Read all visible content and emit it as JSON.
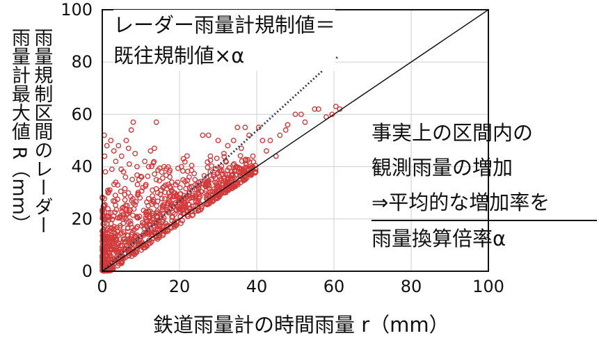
{
  "chart_data": {
    "type": "scatter",
    "xlabel": "鉄道雨量計の時間雨量 r（mm）",
    "ylabel_lines": [
      "雨量規制区間のレーダー",
      "雨量計最大値 R（mm）"
    ],
    "xlim": [
      0,
      100
    ],
    "ylim": [
      0,
      100
    ],
    "xticks": [
      0,
      20,
      40,
      60,
      80,
      100
    ],
    "yticks": [
      0,
      20,
      40,
      60,
      80,
      100
    ],
    "grid": true,
    "series": [
      {
        "marker": "open-circle",
        "color": "#d23a3a",
        "points": [
          [
            0.5,
            52
          ],
          [
            0.6,
            44
          ],
          [
            1.2,
            48
          ],
          [
            0.8,
            38
          ],
          [
            1.5,
            30
          ],
          [
            2.2,
            50
          ],
          [
            3.0,
            46
          ],
          [
            3.5,
            42
          ],
          [
            4.2,
            48
          ],
          [
            5.0,
            44
          ],
          [
            5.5,
            38
          ],
          [
            6.2,
            50
          ],
          [
            6.8,
            47
          ],
          [
            7.5,
            54
          ],
          [
            8.0,
            57
          ],
          [
            8.5,
            45
          ],
          [
            9.0,
            40
          ],
          [
            10.2,
            36
          ],
          [
            11.0,
            42
          ],
          [
            12.0,
            40
          ],
          [
            12.5,
            46
          ],
          [
            13.5,
            47
          ],
          [
            14.0,
            35
          ],
          [
            15.2,
            31
          ],
          [
            16.0,
            40
          ],
          [
            17.5,
            36
          ],
          [
            18.5,
            30
          ],
          [
            19.5,
            34
          ],
          [
            20.5,
            40
          ],
          [
            21.0,
            43
          ],
          [
            22.5,
            36
          ],
          [
            24.0,
            35
          ],
          [
            25.0,
            32
          ],
          [
            26.0,
            52
          ],
          [
            27.5,
            52
          ],
          [
            28.0,
            44
          ],
          [
            29.0,
            37
          ],
          [
            30.0,
            50
          ],
          [
            31.5,
            45
          ],
          [
            32.5,
            48
          ],
          [
            34.0,
            50
          ],
          [
            35.0,
            55
          ],
          [
            36.0,
            47
          ],
          [
            37.0,
            55
          ],
          [
            38.0,
            52
          ],
          [
            39.0,
            44
          ],
          [
            40.5,
            55
          ],
          [
            41.5,
            50
          ],
          [
            42.5,
            46
          ],
          [
            43.5,
            50
          ],
          [
            45.0,
            44
          ],
          [
            46.0,
            52
          ],
          [
            47.5,
            54
          ],
          [
            48.0,
            56
          ],
          [
            50.0,
            60
          ],
          [
            51.5,
            60
          ],
          [
            52.5,
            57
          ],
          [
            55.0,
            62
          ],
          [
            56.0,
            62
          ],
          [
            58.0,
            59
          ],
          [
            59.5,
            60
          ],
          [
            60.5,
            63
          ],
          [
            61.5,
            62
          ],
          [
            14.0,
            57
          ],
          [
            9.5,
            35
          ],
          [
            4.0,
            33
          ],
          [
            7.0,
            41
          ],
          [
            2.5,
            39
          ],
          [
            6.0,
            36
          ],
          [
            10.5,
            32
          ],
          [
            13.0,
            31
          ],
          [
            3.5,
            34
          ]
        ]
      },
      {
        "name": "",
        "marker": "dotted-line",
        "color": "#2c3e5c",
        "slope_label": "α",
        "points": [
          [
            0,
            0
          ],
          [
            61,
            82
          ]
        ]
      },
      {
        "marker": "line",
        "color": "#111111",
        "points": [
          [
            0,
            0
          ],
          [
            100,
            100
          ]
        ]
      }
    ],
    "annotations": {
      "rule": [
        "レーダー雨量計規制値＝",
        "既往規制値×α"
      ],
      "note": [
        "事実上の区間内の",
        "観測雨量の増加",
        "⇒平均的な増加率を",
        "雨量換算倍率α"
      ]
    }
  }
}
